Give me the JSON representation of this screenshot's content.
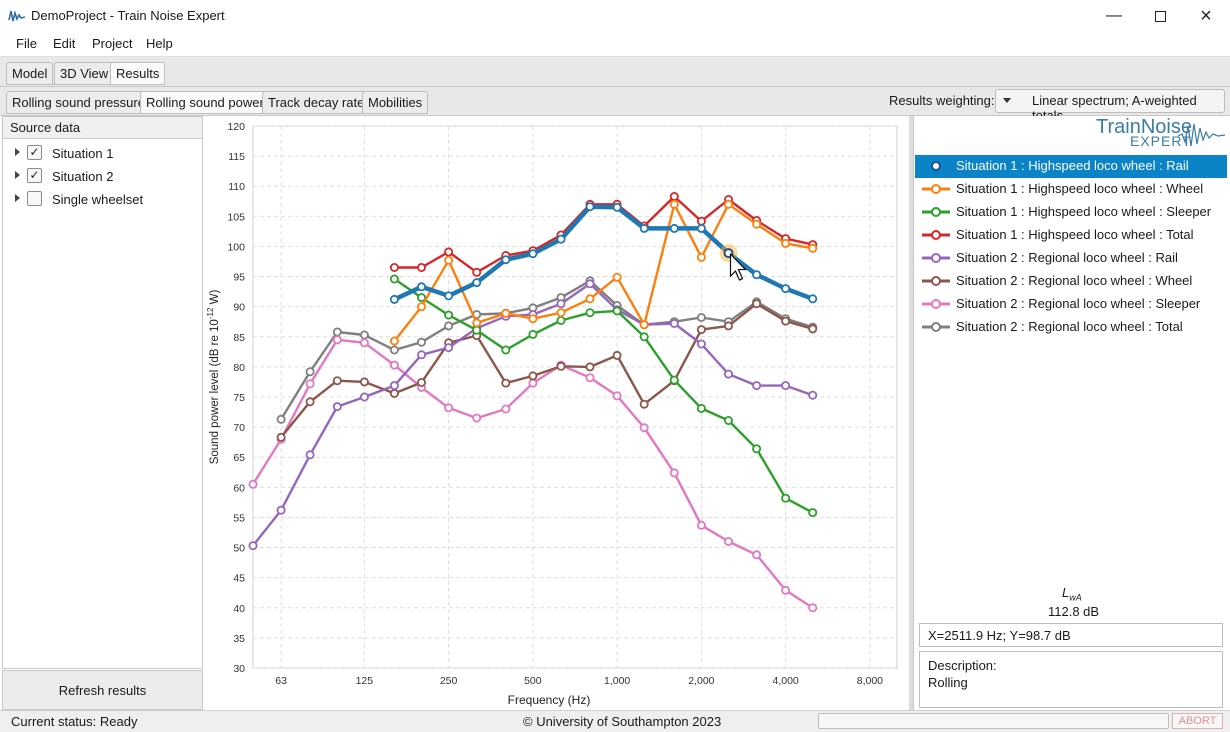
{
  "window": {
    "title": "DemoProject - Train Noise Expert"
  },
  "menu": [
    "File",
    "Edit",
    "Project",
    "Help"
  ],
  "main_tabs": [
    "Model",
    "3D View",
    "Results"
  ],
  "result_tabs": [
    "Rolling sound pressure",
    "Rolling sound power",
    "Track decay rate",
    "Mobilities"
  ],
  "weighting": {
    "label": "Results weighting:",
    "value": "Linear spectrum; A-weighted totals"
  },
  "source_panel": {
    "header": "Source data",
    "items": [
      {
        "label": "Situation 1",
        "checked": true
      },
      {
        "label": "Situation 2",
        "checked": true
      },
      {
        "label": "Single wheelset",
        "checked": false
      }
    ],
    "refresh_label": "Refresh results"
  },
  "logo": {
    "line1": "TrainNoise",
    "line2": "EXPERT"
  },
  "legend": [
    {
      "label": "Situation 1 : Highspeed loco wheel : Rail",
      "color": "#1f77b4",
      "selected": true
    },
    {
      "label": "Situation 1 : Highspeed loco wheel : Wheel",
      "color": "#ff7f0e",
      "selected": false
    },
    {
      "label": "Situation 1 : Highspeed loco wheel : Sleeper",
      "color": "#2ca02c",
      "selected": false
    },
    {
      "label": "Situation 1 : Highspeed loco wheel : Total",
      "color": "#d62728",
      "selected": false
    },
    {
      "label": "Situation 2 : Regional loco wheel : Rail",
      "color": "#9467bd",
      "selected": false
    },
    {
      "label": "Situation 2 : Regional loco wheel : Wheel",
      "color": "#8c564b",
      "selected": false
    },
    {
      "label": "Situation 2 : Regional loco wheel : Sleeper",
      "color": "#e377c2",
      "selected": false
    },
    {
      "label": "Situation 2 : Regional loco wheel : Total",
      "color": "#7f7f7f",
      "selected": false
    }
  ],
  "summary": {
    "lwa_label": "LwA",
    "lwa_sub": "wA",
    "lwa_main": "L",
    "lwa_value": "112.8 dB"
  },
  "cursor_readout": "X=2511.9 Hz;  Y=98.7 dB",
  "description": {
    "label": "Description:",
    "text": "Rolling"
  },
  "status": {
    "text": "Current status: Ready",
    "copyright": "© University of Southampton 2023",
    "abort": "ABORT"
  },
  "chart_data": {
    "type": "line",
    "xlabel": "Frequency (Hz)",
    "ylabel_parts": [
      "Sound power level (dB re 10",
      "-12",
      " W)"
    ],
    "x_scale": "log",
    "xlim": [
      50,
      10000
    ],
    "ylim": [
      30,
      120
    ],
    "y_ticks": [
      30,
      35,
      40,
      45,
      50,
      55,
      60,
      65,
      70,
      75,
      80,
      85,
      90,
      95,
      100,
      105,
      110,
      115,
      120
    ],
    "x_ticks": [
      63,
      125,
      250,
      500,
      1000,
      2000,
      4000,
      8000
    ],
    "x_tick_labels": [
      "63",
      "125",
      "250",
      "500",
      "1,000",
      "2,000",
      "4,000",
      "8,000"
    ],
    "x": [
      50,
      63,
      80,
      100,
      125,
      160,
      200,
      250,
      315,
      400,
      500,
      630,
      800,
      1000,
      1250,
      1600,
      2000,
      2500,
      3150,
      4000,
      5000
    ],
    "series": [
      {
        "name": "Situation 1 : Highspeed loco wheel : Rail",
        "color": "#1f77b4",
        "values": [
          null,
          null,
          null,
          null,
          null,
          91.2,
          93.3,
          91.8,
          94.0,
          97.8,
          98.8,
          101.2,
          106.6,
          106.5,
          103.0,
          103.0,
          103.0,
          98.9,
          95.3,
          93.0,
          91.3
        ]
      },
      {
        "name": "Situation 1 : Highspeed loco wheel : Wheel",
        "color": "#ff7f0e",
        "values": [
          null,
          null,
          null,
          null,
          null,
          84.3,
          90.0,
          97.7,
          87.3,
          88.9,
          88.0,
          89.0,
          91.3,
          94.9,
          87.0,
          107.0,
          98.2,
          107.0,
          103.7,
          100.5,
          99.7
        ]
      },
      {
        "name": "Situation 1 : Highspeed loco wheel : Sleeper",
        "color": "#2ca02c",
        "values": [
          null,
          null,
          null,
          null,
          null,
          94.6,
          91.5,
          88.6,
          86.1,
          82.8,
          85.4,
          87.7,
          89.0,
          89.3,
          85.0,
          77.8,
          73.1,
          71.1,
          66.4,
          58.2,
          55.8
        ]
      },
      {
        "name": "Situation 1 : Highspeed loco wheel : Total",
        "color": "#d62728",
        "values": [
          null,
          null,
          null,
          null,
          null,
          96.5,
          96.5,
          99.1,
          95.7,
          98.5,
          99.3,
          101.9,
          107.0,
          107.0,
          103.4,
          108.3,
          104.2,
          107.8,
          104.3,
          101.3,
          100.3
        ]
      },
      {
        "name": "Situation 2 : Regional loco wheel : Rail",
        "color": "#9467bd",
        "values": [
          50.3,
          56.2,
          65.4,
          73.4,
          75.0,
          76.9,
          82.0,
          83.2,
          86.4,
          88.4,
          88.7,
          90.5,
          93.8,
          89.5,
          87.0,
          87.2,
          83.8,
          78.8,
          76.9,
          76.9,
          75.3
        ]
      },
      {
        "name": "Situation 2 : Regional loco wheel : Wheel",
        "color": "#8c564b",
        "values": [
          null,
          68.3,
          74.2,
          77.7,
          77.5,
          75.6,
          77.4,
          84.0,
          85.2,
          77.3,
          78.5,
          80.1,
          80.0,
          81.9,
          73.8,
          77.7,
          86.2,
          86.8,
          90.5,
          87.6,
          86.3
        ]
      },
      {
        "name": "Situation 2 : Regional loco wheel : Sleeper",
        "color": "#e377c2",
        "values": [
          60.5,
          68.0,
          77.2,
          84.5,
          84.0,
          80.3,
          76.6,
          73.2,
          71.5,
          73.0,
          77.3,
          80.3,
          78.2,
          75.2,
          69.9,
          62.4,
          53.7,
          51.0,
          48.8,
          42.9,
          40.0
        ]
      },
      {
        "name": "Situation 2 : Regional loco wheel : Total",
        "color": "#7f7f7f",
        "values": [
          null,
          71.3,
          79.2,
          85.8,
          85.3,
          82.8,
          84.1,
          86.8,
          88.7,
          88.9,
          89.8,
          91.5,
          94.3,
          90.2,
          87.0,
          87.5,
          88.2,
          87.5,
          90.8,
          88.0,
          86.6
        ]
      }
    ]
  }
}
